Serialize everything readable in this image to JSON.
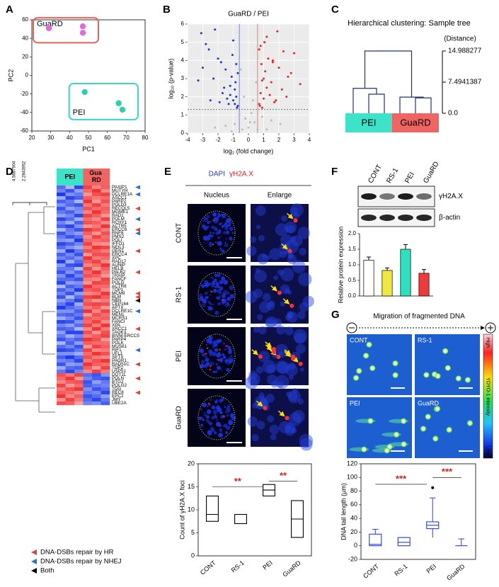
{
  "panels": [
    "A",
    "B",
    "C",
    "D",
    "E",
    "F",
    "G"
  ],
  "e_images": {
    "header": [
      "DAPI",
      "γH2A.X"
    ],
    "columns": [
      "Nucleus",
      "Enlarge"
    ],
    "rows": [
      "CONT",
      "RS-1",
      "PEI",
      "GuaRD"
    ]
  },
  "f_blot": {
    "bands": [
      "γH2A.X",
      "β-actin"
    ]
  },
  "g_images": {
    "title": "Migration of fragmented DNA",
    "labels": [
      "CONT",
      "RS-1",
      "PEI",
      "GuaRD"
    ],
    "colorbar": [
      "High",
      "YOYO-1 intensity",
      "Low"
    ]
  },
  "chart_data": [
    {
      "type": "scatter",
      "xlabel": "PC1",
      "ylabel": "PC2",
      "xlim": [
        20,
        80
      ],
      "ylim": [
        -60,
        60
      ],
      "xticks": [
        20,
        30,
        40,
        50,
        60,
        70,
        80
      ],
      "yticks": [
        -60,
        -40,
        -20,
        0,
        20,
        40,
        60
      ],
      "series": [
        {
          "name": "GuaRD",
          "color": "#e466e4",
          "box_color": "#e8605a",
          "x": [
            29,
            47,
            47
          ],
          "values": [
            51,
            53,
            46
          ]
        },
        {
          "name": "PEI",
          "color": "#2fcfae",
          "box_color": "#3ad6c6",
          "x": [
            48,
            66,
            68
          ],
          "values": [
            -18,
            -30,
            -37
          ]
        }
      ]
    },
    {
      "type": "scatter",
      "title": "GuaRD / PEI",
      "xlabel": "log₂ (fold change)",
      "ylabel": "log₁₀ (p-value)",
      "xlim": [
        -4,
        4
      ],
      "ylim": [
        0,
        6
      ],
      "xticks": [
        -4,
        -3,
        -2,
        -1,
        0,
        1,
        2,
        3,
        4
      ],
      "yticks": [
        0,
        1,
        2,
        3,
        4,
        5,
        6
      ],
      "grid": true,
      "thresholds": {
        "x": [
          -0.6,
          0.6
        ],
        "y": 1.3
      },
      "series": [
        {
          "color": "#2233cc",
          "x": [
            -0.7,
            -0.8,
            -0.9,
            -1.0,
            -1.1,
            -1.2,
            -1.3,
            -1.5,
            -1.7,
            -2.0,
            -2.3,
            -2.6,
            -3.0,
            -3.3,
            -0.75,
            -0.85,
            -1.05,
            -1.4,
            -1.6,
            -1.9,
            -2.2,
            -2.8,
            -0.7,
            -0.9,
            -1.2,
            -1.8,
            -2.5,
            -0.8,
            -1.0,
            -3.1
          ],
          "values": [
            1.5,
            2.0,
            2.4,
            1.8,
            3.1,
            2.6,
            1.6,
            3.5,
            2.2,
            4.1,
            3.0,
            4.6,
            3.6,
            2.9,
            1.4,
            2.8,
            4.3,
            1.9,
            2.5,
            1.7,
            5.7,
            4.9,
            3.3,
            1.6,
            2.1,
            3.9,
            1.8,
            3.8,
            5.1,
            5.5
          ]
        },
        {
          "color": "#ee2222",
          "x": [
            0.7,
            0.8,
            0.9,
            1.0,
            1.1,
            1.2,
            1.3,
            1.5,
            1.7,
            2.0,
            2.3,
            2.6,
            3.0,
            3.4,
            0.75,
            0.85,
            1.05,
            1.4,
            1.6,
            1.9,
            2.2,
            2.8,
            0.7,
            0.9,
            1.2,
            1.8,
            2.5,
            0.8,
            1.0,
            1.6
          ],
          "values": [
            1.6,
            2.2,
            2.9,
            1.9,
            3.4,
            2.5,
            4.1,
            2.8,
            1.7,
            3.6,
            4.5,
            3.1,
            4.4,
            2.7,
            1.5,
            3.8,
            5.0,
            2.1,
            3.9,
            5.6,
            2.4,
            3.3,
            4.6,
            1.4,
            5.3,
            1.8,
            2.0,
            4.8,
            3.0,
            4.0
          ]
        },
        {
          "color": "#bbbbbb",
          "x": [
            -0.9,
            -0.6,
            -0.4,
            -0.2,
            0,
            0.2,
            0.4,
            0.6,
            0.9,
            -1.5,
            1.5,
            -0.3,
            0.3,
            -2.2,
            2.1,
            -0.5,
            0.5,
            -1.1,
            1.2,
            0.1
          ],
          "values": [
            0.5,
            1.0,
            0.2,
            0.8,
            0.3,
            1.1,
            0.6,
            0.2,
            0.9,
            0.4,
            0.7,
            2.0,
            1.8,
            0.3,
            0.5,
            3.5,
            2.8,
            0.1,
            0.2,
            0.6
          ]
        }
      ]
    },
    {
      "type": "dendrogram",
      "title": "Hierarchical clustering: Sample tree",
      "axis_label": "(Distance)",
      "ylim": [
        0,
        14.988277
      ],
      "yticks": [
        {
          "value": 0,
          "label": "0.0"
        },
        7.4941387,
        14.988277
      ],
      "root": 14.988277,
      "groups": [
        {
          "name": "PEI",
          "color": "#3de3c8",
          "heights": [
            4.6,
            6.0
          ]
        },
        {
          "name": "GuaRD",
          "color": "#f06464",
          "heights": [
            3.7,
            3.9
          ]
        }
      ]
    },
    {
      "type": "heatmap",
      "tree_scale": [
        4.5687904,
        2.2843952
      ],
      "columns": [
        {
          "name": "PEI",
          "color": "#3de3c8"
        },
        {
          "name": "Gua RD",
          "color": "#f06464"
        }
      ],
      "genes": [
        "PAXIP1",
        "MUTYH",
        "DCLRE1A",
        "ASCC1",
        "PARP2",
        "POLD3",
        "RECQL5",
        "MGME1",
        "RAD1",
        "POLM",
        "RCHY1",
        "ACTR5",
        "ERCC6",
        "RNF8",
        "PMS2",
        "POLI",
        "IFFO1",
        "NEIL3",
        "GEN1",
        "ERCC4",
        "XPC",
        "RAD17",
        "AUNIP",
        "HELB",
        "PALB2",
        "TRAIP",
        "FANCF",
        "POLG",
        "ACTR8",
        "TOP1",
        "MCM9",
        "BLM",
        "NBN",
        "CEP164",
        "APTX",
        "DCLRE1C",
        "MEN1",
        "MCRS1",
        "FANCI",
        "XPA",
        "XRCC1",
        "TAOK3",
        "BIVM-ERCC5",
        "PARP4",
        "POLK",
        "MUS81",
        "RIF1",
        "UFL1",
        "SETX",
        "PAGR1",
        "RAD51C",
        "TDP2",
        "USP51",
        "DOT1L",
        "POLN",
        "BTG2",
        "POLG2",
        "TDG",
        "REC8",
        "EPC2",
        "JMY",
        "UBE2A"
      ],
      "repair": [
        "NHEJ",
        null,
        "NHEJ",
        null,
        null,
        null,
        "HR",
        null,
        null,
        "NHEJ",
        null,
        null,
        "HR",
        "NHEJ",
        null,
        null,
        null,
        null,
        "HR",
        null,
        null,
        null,
        null,
        null,
        "HR",
        null,
        null,
        null,
        null,
        null,
        "HR",
        "HR",
        "Both",
        null,
        null,
        "NHEJ",
        null,
        null,
        null,
        null,
        "HR",
        null,
        null,
        null,
        null,
        null,
        "NHEJ",
        null,
        null,
        null,
        "HR",
        null,
        null,
        null,
        "HR",
        null,
        null,
        null,
        "HR",
        null,
        null,
        null
      ],
      "values": [
        [
          -1.2,
          -0.6,
          -1.5,
          1.4,
          0.9,
          1.2
        ],
        [
          -1.0,
          -1.4,
          -0.8,
          1.1,
          1.5,
          0.9
        ],
        [
          -1.6,
          -0.9,
          -1.1,
          0.8,
          1.3,
          1.4
        ],
        [
          -0.7,
          -1.5,
          -1.3,
          1.2,
          1.0,
          1.1
        ],
        [
          -1.3,
          -1.1,
          -0.6,
          1.5,
          0.8,
          1.3
        ],
        [
          -0.9,
          -1.2,
          -1.4,
          1.0,
          1.4,
          1.0
        ],
        [
          -1.4,
          -0.8,
          -1.0,
          1.3,
          1.1,
          1.2
        ],
        [
          -1.1,
          -1.3,
          -0.9,
          0.9,
          1.5,
          1.1
        ],
        [
          -0.8,
          -1.0,
          -1.5,
          1.4,
          1.2,
          0.8
        ],
        [
          -1.5,
          -1.2,
          -0.7,
          1.1,
          0.9,
          1.4
        ],
        [
          -1.0,
          -0.7,
          -1.3,
          1.3,
          1.2,
          0.9
        ],
        [
          -1.3,
          -1.5,
          -0.9,
          0.8,
          1.0,
          1.5
        ],
        [
          -0.6,
          -1.1,
          -1.4,
          1.5,
          1.3,
          1.0
        ],
        [
          -1.4,
          -1.0,
          -0.8,
          1.2,
          0.8,
          1.3
        ],
        [
          -1.1,
          -1.4,
          -1.2,
          0.9,
          1.4,
          1.1
        ],
        [
          -0.9,
          -0.8,
          -1.6,
          1.1,
          1.1,
          1.2
        ],
        [
          -1.5,
          -1.3,
          -1.0,
          1.4,
          0.9,
          0.8
        ],
        [
          -1.2,
          -0.9,
          -0.7,
          1.0,
          1.5,
          1.4
        ],
        [
          -0.7,
          -1.6,
          -1.1,
          1.3,
          1.2,
          1.0
        ],
        [
          -1.3,
          -1.0,
          -1.4,
          0.8,
          1.3,
          1.3
        ],
        [
          -1.0,
          -1.2,
          -0.9,
          1.5,
          1.0,
          1.1
        ],
        [
          -1.6,
          -0.7,
          -1.2,
          1.2,
          1.4,
          0.9
        ],
        [
          -0.8,
          -1.4,
          -1.5,
          0.9,
          1.1,
          1.5
        ],
        [
          -1.1,
          -1.1,
          -0.6,
          1.4,
          0.8,
          1.2
        ],
        [
          -1.4,
          -0.9,
          -1.3,
          1.1,
          1.5,
          1.0
        ],
        [
          -0.9,
          -1.5,
          -1.0,
          1.3,
          1.2,
          0.8
        ],
        [
          -1.2,
          -1.2,
          -1.4,
          1.0,
          0.9,
          1.4
        ],
        [
          -1.5,
          -0.8,
          -0.9,
          0.8,
          1.4,
          1.3
        ],
        [
          -0.6,
          -1.3,
          -1.1,
          1.5,
          1.1,
          1.1
        ],
        [
          -1.3,
          -1.0,
          -1.6,
          1.2,
          1.3,
          0.9
        ],
        [
          -1.0,
          -1.4,
          -0.8,
          0.9,
          1.0,
          1.5
        ],
        [
          -1.4,
          -0.6,
          -1.2,
          1.4,
          1.5,
          1.2
        ],
        [
          -0.8,
          -1.1,
          -1.5,
          1.1,
          0.8,
          1.0
        ],
        [
          -1.1,
          -1.5,
          -0.7,
          1.3,
          1.4,
          1.3
        ],
        [
          -1.6,
          -1.2,
          -1.0,
          1.0,
          1.2,
          0.8
        ],
        [
          -0.9,
          -0.9,
          -1.3,
          1.5,
          0.9,
          1.4
        ],
        [
          -1.2,
          -1.3,
          -1.1,
          0.8,
          1.3,
          1.1
        ],
        [
          -0.7,
          -1.0,
          -1.4,
          1.2,
          1.1,
          1.2
        ],
        [
          -1.5,
          -1.4,
          -0.9,
          1.1,
          1.4,
          0.9
        ],
        [
          -1.0,
          -0.8,
          -1.2,
          1.4,
          1.0,
          1.5
        ],
        [
          -1.3,
          -1.2,
          -0.6,
          0.9,
          1.5,
          1.0
        ],
        [
          -0.8,
          -1.5,
          -1.5,
          1.3,
          0.8,
          1.3
        ],
        [
          -1.1,
          -0.7,
          -1.0,
          1.0,
          1.2,
          1.4
        ],
        [
          -1.4,
          -1.1,
          -1.3,
          1.5,
          1.3,
          0.8
        ],
        [
          -0.6,
          -1.3,
          -0.8,
          1.2,
          1.1,
          1.1
        ],
        [
          -1.2,
          -1.0,
          -1.4,
          0.8,
          1.4,
          1.2
        ],
        [
          -1.5,
          -1.4,
          -1.1,
          1.4,
          0.9,
          1.0
        ],
        [
          -0.9,
          -0.9,
          -0.7,
          1.1,
          1.5,
          1.3
        ],
        [
          -1.3,
          -1.6,
          -1.2,
          1.3,
          1.0,
          0.9
        ],
        [
          -1.0,
          -1.1,
          -1.5,
          1.0,
          1.3,
          1.5
        ],
        [
          -1.4,
          -0.8,
          -0.9,
          1.5,
          1.2,
          1.1
        ],
        [
          -0.7,
          -1.2,
          -1.3,
          1.2,
          0.8,
          1.4
        ],
        [
          -1.1,
          -1.5,
          -1.0,
          0.9,
          1.4,
          1.0
        ],
        [
          1.3,
          1.0,
          1.4,
          -1.2,
          -1.4,
          -0.9
        ],
        [
          1.1,
          1.5,
          0.8,
          -1.0,
          -1.3,
          -1.4
        ],
        [
          0.9,
          1.2,
          1.3,
          -1.4,
          -0.8,
          -1.1
        ],
        [
          1.4,
          0.8,
          1.1,
          -1.3,
          -1.1,
          -1.0
        ],
        [
          1.0,
          1.3,
          1.5,
          -0.9,
          -1.4,
          -1.2
        ],
        [
          1.2,
          1.1,
          0.9,
          -1.1,
          -1.0,
          -1.5
        ],
        [
          1.5,
          0.9,
          1.2,
          -1.4,
          -1.2,
          -0.8
        ],
        [
          0.8,
          1.4,
          1.0,
          -1.2,
          -1.5,
          -1.1
        ],
        [
          1.3,
          1.2,
          0.7,
          -1.0,
          -0.9,
          -1.3
        ]
      ],
      "legend": [
        {
          "label": "DNA-DSBs repair by HR",
          "color": "#e8402a",
          "key": "HR"
        },
        {
          "label": "DNA-DSBs repair by NHEJ",
          "color": "#2a6fd6",
          "key": "NHEJ"
        },
        {
          "label": "Both",
          "color": "#000000",
          "key": "Both"
        }
      ]
    },
    {
      "type": "box",
      "ylabel": "Count of γH2A.X foci",
      "ylim": [
        0,
        20
      ],
      "yticks": [
        0,
        5,
        10,
        15,
        20
      ],
      "color": "#000000",
      "categories": [
        "CONT",
        "RS-1",
        "PEI",
        "GuaRD"
      ],
      "q1": [
        7.5,
        7,
        13,
        4
      ],
      "median": [
        9,
        7,
        14.3,
        8
      ],
      "q3": [
        13,
        9,
        15.5,
        12
      ],
      "significance": [
        {
          "label": "**",
          "from": 0,
          "to": 2,
          "y": 15,
          "color": "#e02020"
        },
        {
          "label": "**",
          "from": 2,
          "to": 3,
          "y": 16.2,
          "color": "#e02020"
        }
      ]
    },
    {
      "type": "bar",
      "ylabel": "Relative protein expression",
      "ylim": [
        0,
        2
      ],
      "yticks": [
        {
          "value": 0,
          "label": "0.0"
        },
        {
          "value": 0.5,
          "label": "0.5"
        },
        {
          "value": 1,
          "label": "1.0"
        },
        {
          "value": 1.5,
          "label": "1.5"
        },
        {
          "value": 2,
          "label": "2.0"
        }
      ],
      "categories": [
        "CONT",
        "RS-1",
        "PEI",
        "GuaRD"
      ],
      "values": [
        1.15,
        0.82,
        1.5,
        0.73
      ],
      "errors": [
        0.1,
        0.08,
        0.15,
        0.12
      ],
      "colors": [
        "#ffffff",
        "#f2e640",
        "#2ee0c0",
        "#f03a3a"
      ]
    },
    {
      "type": "box",
      "ylabel": "DNA tail length (μm)",
      "ylim": [
        -20,
        120
      ],
      "yticks": [
        -20,
        0,
        20,
        40,
        60,
        80,
        100,
        120
      ],
      "color": "#2a3fd6",
      "categories": [
        "CONT",
        "RS-1",
        "PEI",
        "GuaRD"
      ],
      "q1": [
        0,
        0,
        25,
        0
      ],
      "median": [
        2,
        5,
        30,
        0
      ],
      "q3": [
        17,
        12,
        35,
        0
      ],
      "whisker_low": [
        0,
        0,
        12,
        0
      ],
      "whisker_high": [
        24,
        12,
        70,
        10
      ],
      "outliers": [
        [],
        [],
        [
          85
        ],
        []
      ],
      "significance": [
        {
          "label": "***",
          "from": 0,
          "to": 2,
          "y": 90,
          "color": "#e02020"
        },
        {
          "label": "***",
          "from": 2,
          "to": 3,
          "y": 100,
          "color": "#e02020"
        }
      ]
    }
  ]
}
